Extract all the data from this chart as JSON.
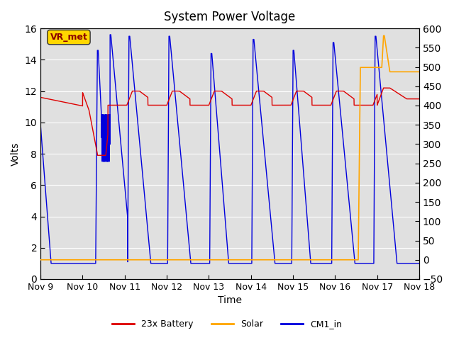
{
  "title": "System Power Voltage",
  "xlabel": "Time",
  "ylabel": "Volts",
  "ylim_left": [
    0,
    16
  ],
  "ylim_right": [
    -50,
    600
  ],
  "yticks_left": [
    0,
    2,
    4,
    6,
    8,
    10,
    12,
    14,
    16
  ],
  "yticks_right": [
    -50,
    0,
    50,
    100,
    150,
    200,
    250,
    300,
    350,
    400,
    450,
    500,
    550,
    600
  ],
  "xtick_labels": [
    "Nov 9",
    "Nov 10",
    "Nov 11",
    "Nov 12",
    "Nov 13",
    "Nov 14",
    "Nov 15",
    "Nov 16",
    "Nov 17",
    "Nov 18"
  ],
  "annotation_text": "VR_met",
  "bg_color": "#e0e0e0",
  "line_battery_color": "#dd0000",
  "line_solar_color": "#ffa500",
  "line_cm1_color": "#0000dd",
  "legend_labels": [
    "23x Battery",
    "Solar",
    "CM1_in"
  ],
  "figsize": [
    6.4,
    4.8
  ],
  "dpi": 100
}
